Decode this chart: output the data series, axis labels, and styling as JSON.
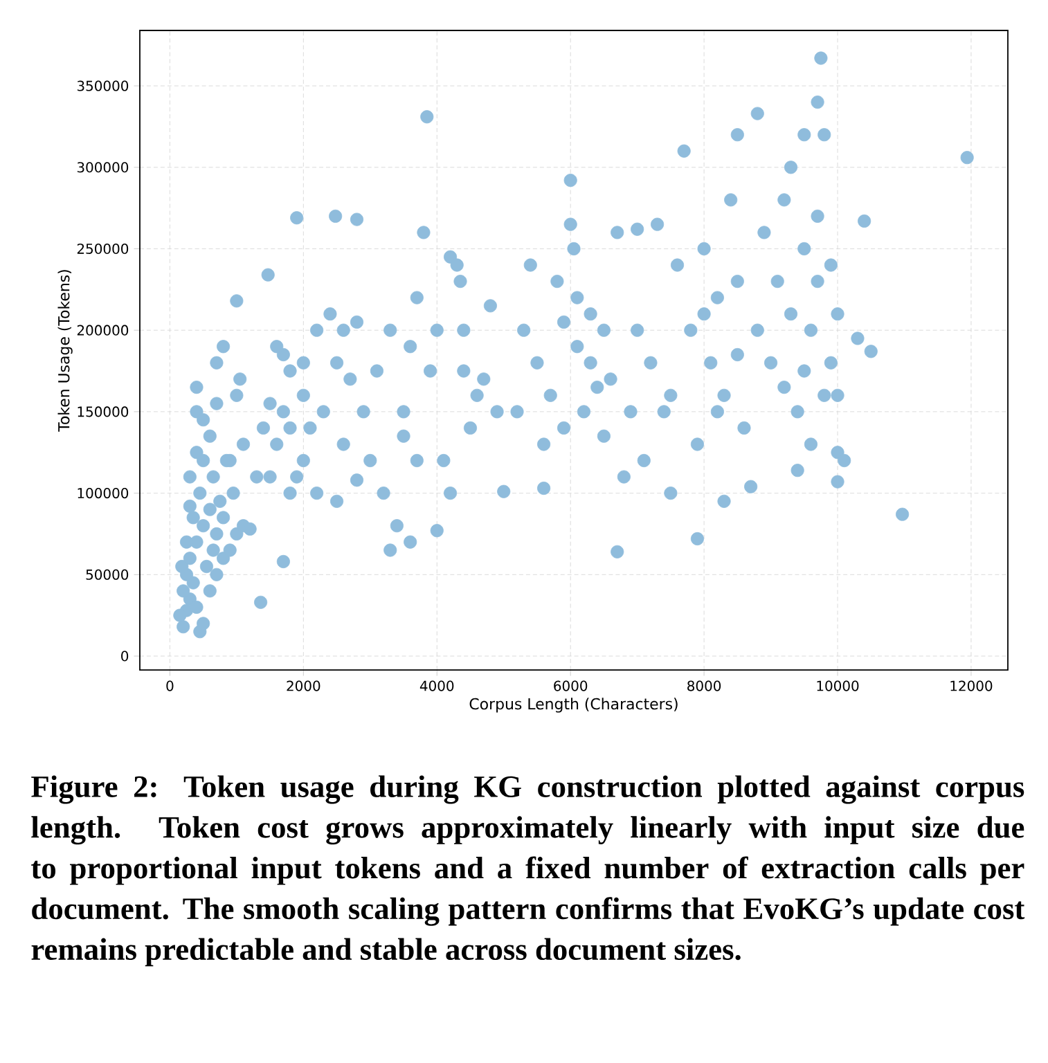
{
  "chart_data": {
    "type": "scatter",
    "xlabel": "Corpus Length (Characters)",
    "ylabel": "Token Usage (Tokens)",
    "xlim": [
      -450,
      12550
    ],
    "ylim": [
      -8500,
      384000
    ],
    "xticks": [
      0,
      2000,
      4000,
      6000,
      8000,
      10000,
      12000
    ],
    "yticks": [
      0,
      50000,
      100000,
      150000,
      200000,
      250000,
      300000,
      350000
    ],
    "grid": true,
    "marker": "circle",
    "annotations": [
      "Figure 2: Token usage during KG construction plotted against corpus length. Token cost grows approximately linearly with input size due to proportional input tokens and a fixed number of extraction calls per document. The smooth scaling pattern confirms that EvoKG’s update cost remains predictable and stable across document sizes."
    ],
    "series": [
      {
        "color": "#8fbcdc",
        "x": [
          200,
          250,
          150,
          300,
          200,
          350,
          250,
          180,
          400,
          450,
          500,
          300,
          400,
          250,
          600,
          550,
          700,
          650,
          500,
          350,
          600,
          700,
          800,
          750,
          450,
          300,
          500,
          400,
          650,
          800,
          900,
          1000,
          1100,
          950,
          850,
          600,
          400,
          500,
          700,
          400,
          900,
          300,
          1200,
          1300,
          1100,
          1000,
          1050,
          800,
          1000,
          700,
          1360,
          1400,
          1500,
          1600,
          1700,
          1800,
          1700,
          1500,
          1800,
          1700,
          1900,
          2000,
          2100,
          2000,
          2200,
          2300,
          2400,
          2500,
          2600,
          2700,
          2800,
          2900,
          2200,
          2500,
          2800,
          3000,
          3100,
          3200,
          3300,
          1470,
          1900,
          2480,
          2800,
          2000,
          1600,
          1800,
          2600,
          3500,
          3400,
          3600,
          3700,
          3600,
          3700,
          3800,
          3850,
          3900,
          4000,
          4000,
          4100,
          4200,
          4200,
          4300,
          4350,
          4400,
          4400,
          4500,
          4600,
          4800,
          4900,
          5000,
          4700,
          3300,
          3500,
          5200,
          5300,
          5400,
          5500,
          5600,
          5600,
          5700,
          5800,
          5900,
          6000,
          6000,
          6050,
          6100,
          6100,
          6200,
          6300,
          6400,
          6500,
          6500,
          6600,
          6700,
          6700,
          6800,
          6900,
          7000,
          7000,
          6300,
          5900,
          7200,
          7300,
          7500,
          7500,
          7600,
          7700,
          7800,
          7900,
          7900,
          8000,
          8000,
          8100,
          8200,
          8300,
          8300,
          8400,
          8500,
          8500,
          8600,
          8700,
          8800,
          8800,
          8900,
          9000,
          7400,
          8200,
          7100,
          8500,
          9100,
          9200,
          9300,
          9300,
          9400,
          9400,
          9500,
          9500,
          9500,
          9600,
          9700,
          9700,
          9700,
          9750,
          9800,
          9800,
          9900,
          9900,
          10000,
          10000,
          10000,
          10000,
          10100,
          10300,
          10400,
          10500,
          9200,
          9600,
          10970,
          11940
        ],
        "values": [
          18000,
          28000,
          25000,
          35000,
          40000,
          45000,
          50000,
          55000,
          30000,
          15000,
          20000,
          60000,
          70000,
          70000,
          40000,
          55000,
          50000,
          65000,
          80000,
          85000,
          90000,
          75000,
          60000,
          95000,
          100000,
          110000,
          120000,
          125000,
          110000,
          85000,
          65000,
          75000,
          80000,
          100000,
          120000,
          135000,
          150000,
          145000,
          155000,
          165000,
          120000,
          92000,
          78000,
          110000,
          130000,
          160000,
          170000,
          190000,
          218000,
          180000,
          33000,
          140000,
          155000,
          130000,
          150000,
          175000,
          185000,
          110000,
          100000,
          58000,
          110000,
          120000,
          140000,
          160000,
          200000,
          150000,
          210000,
          180000,
          200000,
          170000,
          205000,
          150000,
          100000,
          95000,
          108000,
          120000,
          175000,
          100000,
          65000,
          234000,
          269000,
          270000,
          268000,
          180000,
          190000,
          140000,
          130000,
          150000,
          80000,
          70000,
          120000,
          190000,
          220000,
          260000,
          331000,
          175000,
          200000,
          77000,
          120000,
          100000,
          245000,
          240000,
          230000,
          200000,
          175000,
          140000,
          160000,
          215000,
          150000,
          101000,
          170000,
          200000,
          135000,
          150000,
          200000,
          240000,
          180000,
          103000,
          130000,
          160000,
          230000,
          140000,
          292000,
          265000,
          250000,
          220000,
          190000,
          150000,
          180000,
          165000,
          200000,
          135000,
          170000,
          64000,
          260000,
          110000,
          150000,
          200000,
          262000,
          210000,
          205000,
          180000,
          265000,
          100000,
          160000,
          240000,
          310000,
          200000,
          130000,
          72000,
          250000,
          210000,
          180000,
          220000,
          95000,
          160000,
          280000,
          320000,
          230000,
          140000,
          104000,
          333000,
          200000,
          260000,
          180000,
          150000,
          150000,
          120000,
          185000,
          230000,
          280000,
          300000,
          210000,
          150000,
          114000,
          320000,
          250000,
          175000,
          200000,
          340000,
          270000,
          230000,
          367000,
          320000,
          160000,
          180000,
          240000,
          210000,
          125000,
          107000,
          160000,
          120000,
          195000,
          267000,
          187000,
          165000,
          130000,
          87000,
          306000
        ]
      }
    ]
  }
}
